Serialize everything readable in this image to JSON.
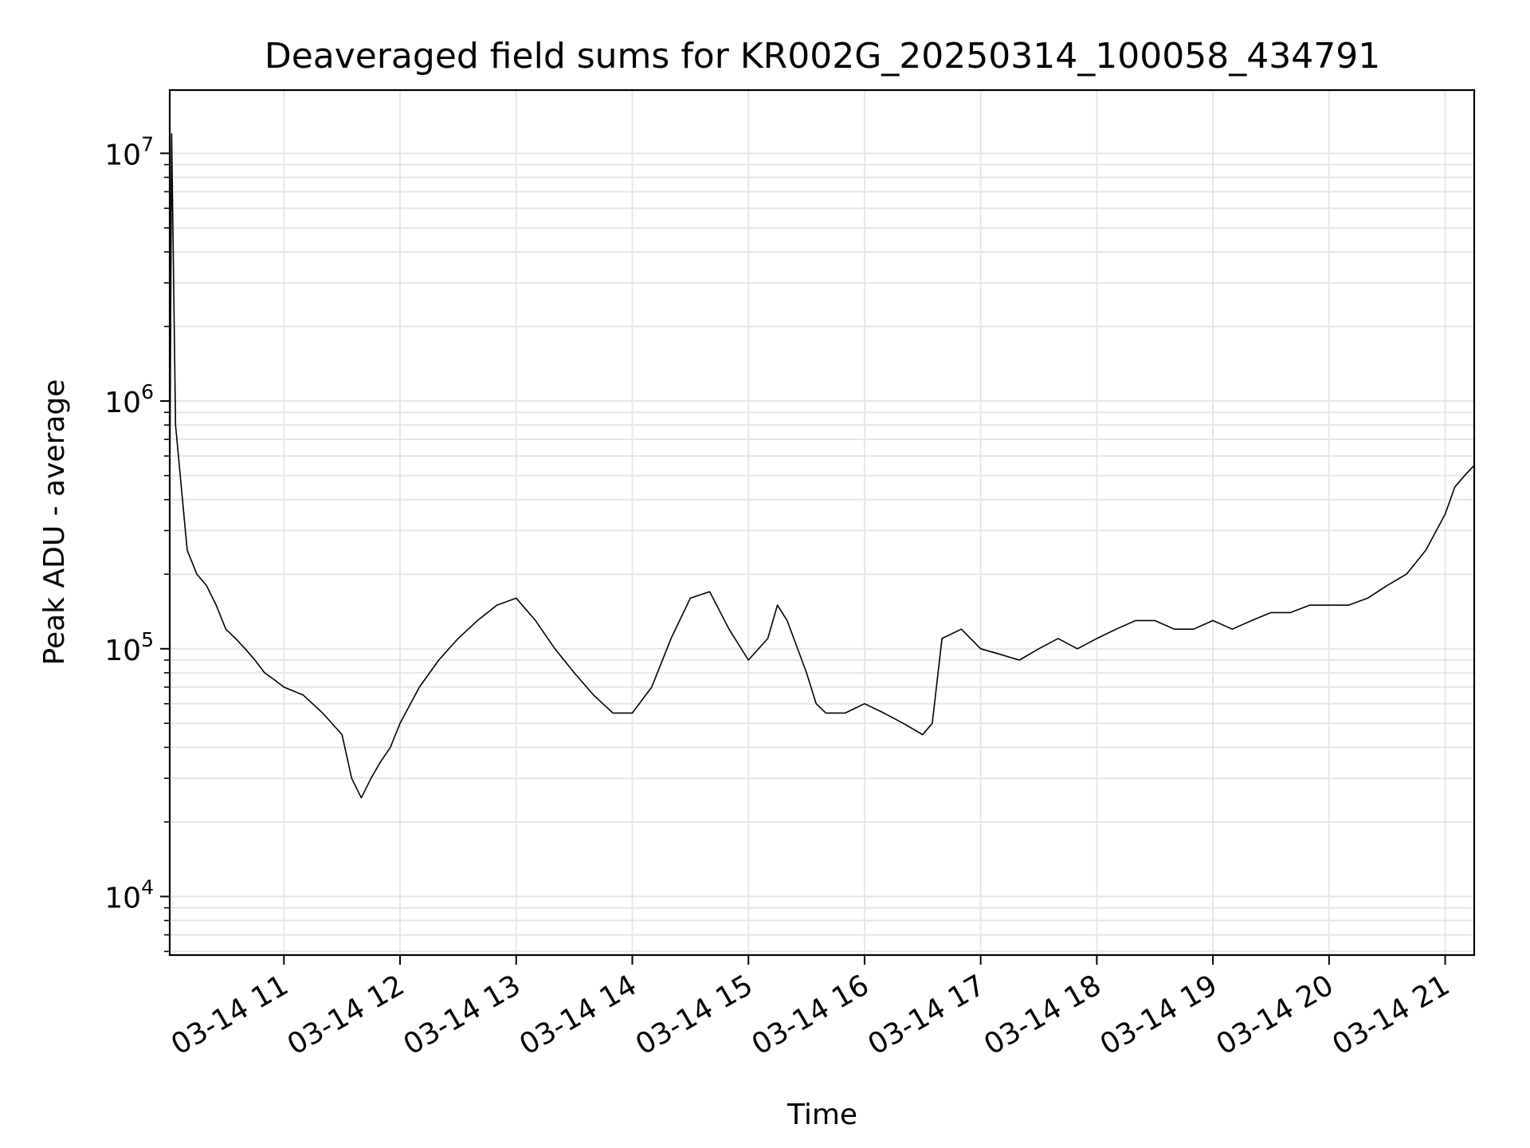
{
  "chart_data": {
    "type": "line",
    "title": "Deaveraged field sums for KR002G_20250314_100058_434791",
    "xlabel": "Time",
    "ylabel": "Peak ADU - average",
    "y_scale": "log",
    "ylim": [
      5800,
      18000000
    ],
    "xlim": [
      "2025-03-14 10:01",
      "2025-03-14 21:15"
    ],
    "grid": true,
    "line_color": "#000000",
    "grid_color": "#e6e6e6",
    "x_ticks": [
      {
        "value": "2025-03-14 11:00",
        "label": "03-14 11"
      },
      {
        "value": "2025-03-14 12:00",
        "label": "03-14 12"
      },
      {
        "value": "2025-03-14 13:00",
        "label": "03-14 13"
      },
      {
        "value": "2025-03-14 14:00",
        "label": "03-14 14"
      },
      {
        "value": "2025-03-14 15:00",
        "label": "03-14 15"
      },
      {
        "value": "2025-03-14 16:00",
        "label": "03-14 16"
      },
      {
        "value": "2025-03-14 17:00",
        "label": "03-14 17"
      },
      {
        "value": "2025-03-14 18:00",
        "label": "03-14 18"
      },
      {
        "value": "2025-03-14 19:00",
        "label": "03-14 19"
      },
      {
        "value": "2025-03-14 20:00",
        "label": "03-14 20"
      },
      {
        "value": "2025-03-14 21:00",
        "label": "03-14 21"
      }
    ],
    "y_ticks": [
      {
        "value": 10000,
        "base": "10",
        "exp": "4"
      },
      {
        "value": 100000,
        "base": "10",
        "exp": "5"
      },
      {
        "value": 1000000,
        "base": "10",
        "exp": "6"
      },
      {
        "value": 10000000,
        "base": "10",
        "exp": "7"
      }
    ],
    "series": [
      {
        "x": [
          "2025-03-14 10:01",
          "2025-03-14 10:02",
          "2025-03-14 10:04",
          "2025-03-14 10:10",
          "2025-03-14 10:15",
          "2025-03-14 10:20",
          "2025-03-14 10:25",
          "2025-03-14 10:30",
          "2025-03-14 10:35",
          "2025-03-14 10:40",
          "2025-03-14 10:45",
          "2025-03-14 10:50",
          "2025-03-14 10:55",
          "2025-03-14 11:00",
          "2025-03-14 11:10",
          "2025-03-14 11:20",
          "2025-03-14 11:30",
          "2025-03-14 11:35",
          "2025-03-14 11:40",
          "2025-03-14 11:45",
          "2025-03-14 11:50",
          "2025-03-14 11:55",
          "2025-03-14 12:00",
          "2025-03-14 12:10",
          "2025-03-14 12:20",
          "2025-03-14 12:30",
          "2025-03-14 12:40",
          "2025-03-14 12:50",
          "2025-03-14 13:00",
          "2025-03-14 13:10",
          "2025-03-14 13:20",
          "2025-03-14 13:30",
          "2025-03-14 13:40",
          "2025-03-14 13:50",
          "2025-03-14 14:00",
          "2025-03-14 14:10",
          "2025-03-14 14:20",
          "2025-03-14 14:30",
          "2025-03-14 14:40",
          "2025-03-14 14:50",
          "2025-03-14 15:00",
          "2025-03-14 15:10",
          "2025-03-14 15:15",
          "2025-03-14 15:20",
          "2025-03-14 15:30",
          "2025-03-14 15:35",
          "2025-03-14 15:40",
          "2025-03-14 15:50",
          "2025-03-14 16:00",
          "2025-03-14 16:10",
          "2025-03-14 16:20",
          "2025-03-14 16:30",
          "2025-03-14 16:35",
          "2025-03-14 16:40",
          "2025-03-14 16:50",
          "2025-03-14 17:00",
          "2025-03-14 17:10",
          "2025-03-14 17:20",
          "2025-03-14 17:30",
          "2025-03-14 17:40",
          "2025-03-14 17:50",
          "2025-03-14 18:00",
          "2025-03-14 18:10",
          "2025-03-14 18:20",
          "2025-03-14 18:30",
          "2025-03-14 18:40",
          "2025-03-14 18:50",
          "2025-03-14 19:00",
          "2025-03-14 19:10",
          "2025-03-14 19:20",
          "2025-03-14 19:30",
          "2025-03-14 19:40",
          "2025-03-14 19:50",
          "2025-03-14 20:00",
          "2025-03-14 20:10",
          "2025-03-14 20:20",
          "2025-03-14 20:30",
          "2025-03-14 20:40",
          "2025-03-14 20:50",
          "2025-03-14 21:00",
          "2025-03-14 21:05",
          "2025-03-14 21:10",
          "2025-03-14 21:15"
        ],
        "y": [
          400000,
          12000000,
          800000,
          250000,
          200000,
          180000,
          150000,
          120000,
          110000,
          100000,
          90000,
          80000,
          75000,
          70000,
          65000,
          55000,
          45000,
          30000,
          25000,
          30000,
          35000,
          40000,
          50000,
          70000,
          90000,
          110000,
          130000,
          150000,
          160000,
          130000,
          100000,
          80000,
          65000,
          55000,
          55000,
          70000,
          110000,
          160000,
          170000,
          120000,
          90000,
          110000,
          150000,
          130000,
          80000,
          60000,
          55000,
          55000,
          60000,
          55000,
          50000,
          45000,
          50000,
          110000,
          120000,
          100000,
          95000,
          90000,
          100000,
          110000,
          100000,
          110000,
          120000,
          130000,
          130000,
          120000,
          120000,
          130000,
          120000,
          130000,
          140000,
          140000,
          150000,
          150000,
          150000,
          160000,
          180000,
          200000,
          250000,
          350000,
          450000,
          500000,
          550000
        ]
      }
    ]
  }
}
